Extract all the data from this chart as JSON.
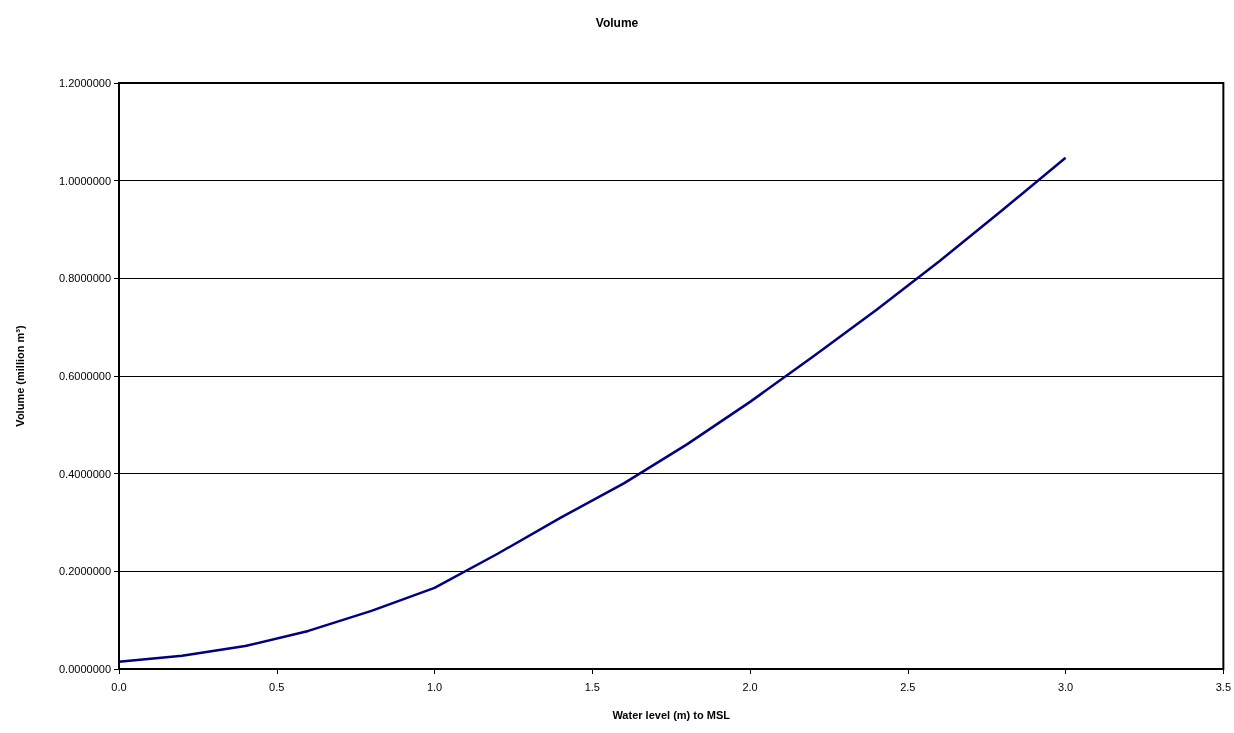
{
  "chart_data": {
    "type": "line",
    "title": "Volume",
    "xlabel": "Water level (m) to MSL",
    "ylabel": "Volume (million m³)",
    "x": [
      0,
      0.2,
      0.4,
      0.6,
      0.8,
      1.0,
      1.2,
      1.4,
      1.6,
      1.8,
      2.0,
      2.2,
      2.4,
      2.6,
      2.8,
      3.0
    ],
    "series": [
      {
        "color": "#000080",
        "values": [
          0.015,
          0.027,
          0.047,
          0.078,
          0.119,
          0.166,
          0.236,
          0.31,
          0.38,
          0.46,
          0.547,
          0.64,
          0.735,
          0.835,
          0.94,
          1.047
        ]
      }
    ],
    "xlim": [
      0,
      3.5
    ],
    "xticks": [
      {
        "value": 0,
        "label": "0.0"
      },
      {
        "value": 0.5,
        "label": "0.5"
      },
      {
        "value": 1,
        "label": "1.0"
      },
      {
        "value": 1.5,
        "label": "1.5"
      },
      {
        "value": 2,
        "label": "2.0"
      },
      {
        "value": 2.5,
        "label": "2.5"
      },
      {
        "value": 3,
        "label": "3.0"
      },
      {
        "value": 3.5,
        "label": "3.5"
      }
    ],
    "ylim": [
      0,
      1.2
    ],
    "yticks": [
      {
        "value": 0,
        "label": "0.0000000"
      },
      {
        "value": 0.2,
        "label": "0.2000000"
      },
      {
        "value": 0.4,
        "label": "0.4000000"
      },
      {
        "value": 0.6,
        "label": "0.6000000"
      },
      {
        "value": 0.8,
        "label": "0.8000000"
      },
      {
        "value": 1,
        "label": "1.0000000"
      },
      {
        "value": 1.2,
        "label": "1.2000000"
      }
    ],
    "grid": "y",
    "marker": "none",
    "line_style": "solid"
  }
}
